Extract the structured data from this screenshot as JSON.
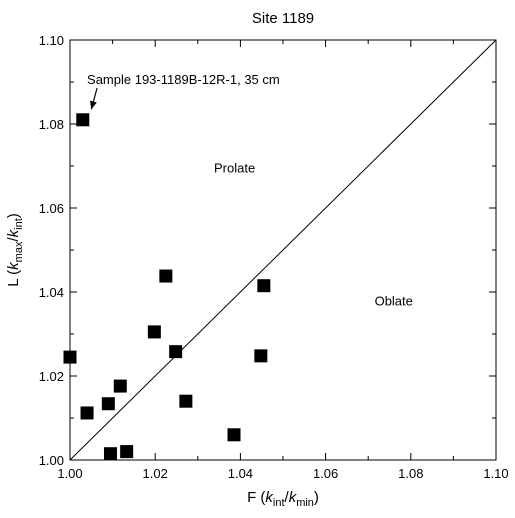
{
  "chart_data": {
    "type": "scatter",
    "title": "Site 1189",
    "xlabel": {
      "parts": [
        {
          "text": "F (",
          "style": "normal"
        },
        {
          "text": "k",
          "style": "italic"
        },
        {
          "text": "int",
          "style": "sub"
        },
        {
          "text": "/",
          "style": "normal"
        },
        {
          "text": "k",
          "style": "italic"
        },
        {
          "text": "min",
          "style": "sub"
        },
        {
          "text": ")",
          "style": "normal"
        }
      ]
    },
    "ylabel": {
      "parts": [
        {
          "text": "L (",
          "style": "normal"
        },
        {
          "text": "k",
          "style": "italic"
        },
        {
          "text": "max",
          "style": "sub"
        },
        {
          "text": "/",
          "style": "normal"
        },
        {
          "text": "k",
          "style": "italic"
        },
        {
          "text": "int",
          "style": "sub"
        },
        {
          "text": ")",
          "style": "normal"
        }
      ]
    },
    "xlim": [
      1.0,
      1.1
    ],
    "ylim": [
      1.0,
      1.1
    ],
    "xticks": [
      "1.00",
      "1.02",
      "1.04",
      "1.06",
      "1.08",
      "1.10"
    ],
    "yticks": [
      "1.00",
      "1.02",
      "1.04",
      "1.06",
      "1.08",
      "1.10"
    ],
    "grid": false,
    "marker": "filled-square",
    "marker_color": "#000000",
    "reference_line": {
      "from": [
        1.0,
        1.0
      ],
      "to": [
        1.1,
        1.1
      ]
    },
    "points": [
      {
        "x": 1.003,
        "y": 1.081
      },
      {
        "x": 1.0,
        "y": 1.0245
      },
      {
        "x": 1.004,
        "y": 1.0112
      },
      {
        "x": 1.009,
        "y": 1.0134
      },
      {
        "x": 1.0118,
        "y": 1.0176
      },
      {
        "x": 1.0095,
        "y": 1.0015
      },
      {
        "x": 1.0133,
        "y": 1.002
      },
      {
        "x": 1.0198,
        "y": 1.0305
      },
      {
        "x": 1.0225,
        "y": 1.0438
      },
      {
        "x": 1.0248,
        "y": 1.0258
      },
      {
        "x": 1.0272,
        "y": 1.014
      },
      {
        "x": 1.0385,
        "y": 1.006
      },
      {
        "x": 1.0448,
        "y": 1.0248
      },
      {
        "x": 1.0455,
        "y": 1.0415
      }
    ],
    "annotations": [
      {
        "text": "Sample 193-1189B-12R-1, 35 cm",
        "x": 1.004,
        "y": 1.0895,
        "arrow_to": [
          1.005,
          1.0835
        ]
      },
      {
        "text": "Prolate",
        "x": 1.0338,
        "y": 1.0685
      },
      {
        "text": "Oblate",
        "x": 1.0715,
        "y": 1.0368
      }
    ]
  }
}
